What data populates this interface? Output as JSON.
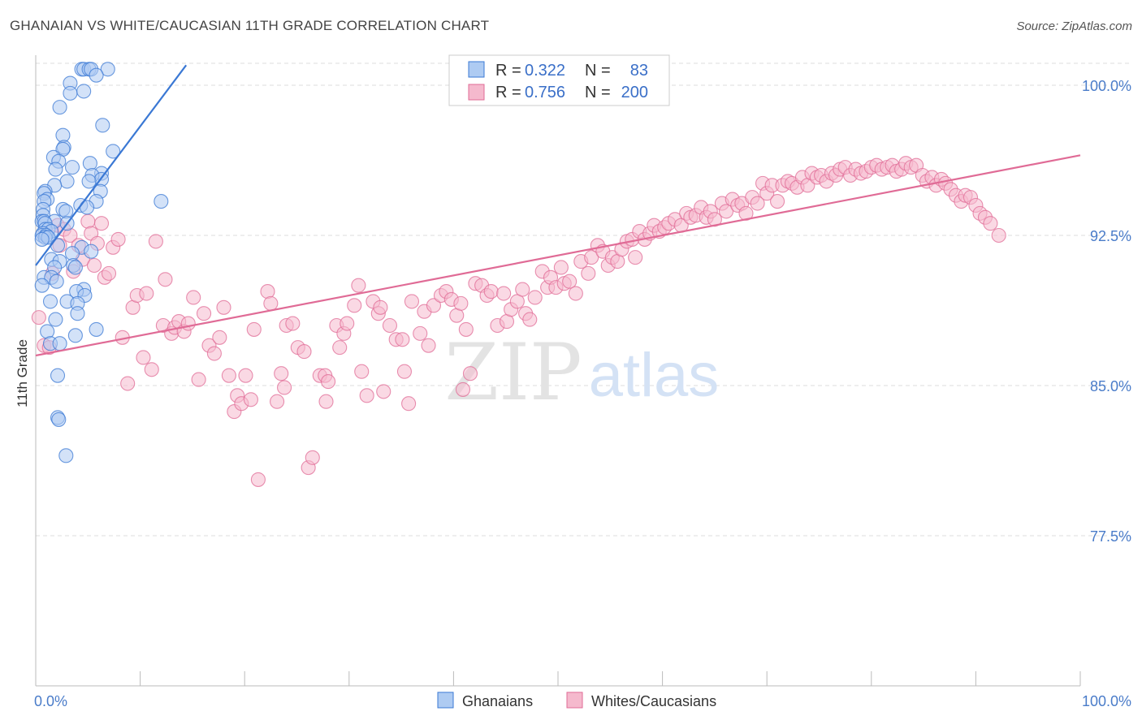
{
  "title": "GHANAIAN VS WHITE/CAUCASIAN 11TH GRADE CORRELATION CHART",
  "source": "Source: ZipAtlas.com",
  "watermark": {
    "zip": "ZIP",
    "atlas": "atlas"
  },
  "colors": {
    "blue": "#3a78d4",
    "blue_fill": "#aecbf2",
    "pink": "#e06b96",
    "pink_fill": "#f5b9cd",
    "axis_label": "#4a7cc9",
    "grid": "#dddddd"
  },
  "legend_top": {
    "rows": [
      {
        "r_label": "R =",
        "r_value": "0.322",
        "n_label": "N =",
        "n_value": "83"
      },
      {
        "r_label": "R =",
        "r_value": "0.756",
        "n_label": "N =",
        "n_value": "200"
      }
    ]
  },
  "legend_bottom": [
    "Ghanaians",
    "Whites/Caucasians"
  ],
  "chart_data": {
    "type": "scatter",
    "title": "GHANAIAN VS WHITE/CAUCASIAN 11TH GRADE CORRELATION CHART",
    "xlabel": "",
    "ylabel": "11th Grade",
    "xlim": [
      0,
      100
    ],
    "ylim": [
      70,
      101.5
    ],
    "x_tick_labels": [
      "0.0%",
      "100.0%"
    ],
    "y_ticks": [
      77.5,
      85.0,
      92.5,
      100.0
    ],
    "y_tick_labels": [
      "77.5%",
      "85.0%",
      "92.5%",
      "100.0%"
    ],
    "series": [
      {
        "name": "Ghanaians",
        "R": 0.322,
        "N": 83,
        "trend": {
          "x": [
            0,
            14.4
          ],
          "y": [
            91.0,
            101.0
          ]
        },
        "points": [
          [
            4.4,
            100.8
          ],
          [
            4.6,
            100.8
          ],
          [
            5.1,
            100.8
          ],
          [
            5.3,
            100.8
          ],
          [
            6.9,
            100.8
          ],
          [
            5.8,
            100.5
          ],
          [
            3.3,
            100.1
          ],
          [
            3.3,
            99.6
          ],
          [
            4.6,
            99.7
          ],
          [
            2.3,
            98.9
          ],
          [
            6.4,
            98.0
          ],
          [
            2.6,
            97.5
          ],
          [
            2.7,
            96.9
          ],
          [
            2.6,
            96.8
          ],
          [
            7.4,
            96.7
          ],
          [
            1.7,
            96.4
          ],
          [
            2.2,
            96.2
          ],
          [
            5.2,
            96.1
          ],
          [
            3.5,
            95.9
          ],
          [
            1.9,
            95.8
          ],
          [
            6.3,
            95.6
          ],
          [
            5.4,
            95.5
          ],
          [
            6.3,
            95.3
          ],
          [
            3.0,
            95.2
          ],
          [
            5.1,
            95.2
          ],
          [
            1.8,
            95.0
          ],
          [
            0.9,
            94.7
          ],
          [
            6.2,
            94.7
          ],
          [
            0.8,
            94.6
          ],
          [
            1.1,
            94.3
          ],
          [
            0.8,
            94.2
          ],
          [
            5.8,
            94.2
          ],
          [
            12.0,
            94.2
          ],
          [
            4.3,
            94.0
          ],
          [
            4.9,
            93.9
          ],
          [
            0.7,
            93.8
          ],
          [
            2.6,
            93.8
          ],
          [
            2.9,
            93.7
          ],
          [
            0.7,
            93.5
          ],
          [
            0.6,
            93.2
          ],
          [
            0.8,
            93.2
          ],
          [
            1.8,
            93.2
          ],
          [
            0.9,
            93.1
          ],
          [
            3.0,
            93.1
          ],
          [
            0.9,
            92.8
          ],
          [
            1.2,
            92.8
          ],
          [
            1.5,
            92.7
          ],
          [
            0.7,
            92.6
          ],
          [
            0.6,
            92.5
          ],
          [
            1.0,
            92.5
          ],
          [
            0.9,
            92.4
          ],
          [
            1.2,
            92.4
          ],
          [
            0.6,
            92.3
          ],
          [
            2.1,
            92.0
          ],
          [
            4.4,
            91.9
          ],
          [
            5.3,
            91.7
          ],
          [
            3.5,
            91.6
          ],
          [
            1.5,
            91.3
          ],
          [
            2.3,
            91.2
          ],
          [
            3.6,
            91.0
          ],
          [
            1.8,
            90.9
          ],
          [
            3.8,
            90.9
          ],
          [
            0.8,
            90.4
          ],
          [
            1.5,
            90.4
          ],
          [
            2.0,
            90.2
          ],
          [
            0.6,
            90.0
          ],
          [
            4.6,
            89.8
          ],
          [
            3.9,
            89.7
          ],
          [
            4.7,
            89.5
          ],
          [
            1.4,
            89.2
          ],
          [
            3.0,
            89.2
          ],
          [
            4.0,
            89.1
          ],
          [
            4.0,
            88.6
          ],
          [
            1.9,
            88.3
          ],
          [
            1.1,
            87.7
          ],
          [
            5.8,
            87.8
          ],
          [
            3.8,
            87.5
          ],
          [
            1.4,
            87.1
          ],
          [
            2.3,
            87.1
          ],
          [
            2.1,
            85.5
          ],
          [
            2.1,
            83.4
          ],
          [
            2.2,
            83.3
          ],
          [
            2.9,
            81.5
          ]
        ]
      },
      {
        "name": "Whites/Caucasians",
        "R": 0.756,
        "N": 200,
        "trend": {
          "x": [
            0,
            100
          ],
          "y": [
            86.5,
            96.5
          ]
        },
        "points": [
          [
            0.3,
            88.4
          ],
          [
            0.8,
            87.0
          ],
          [
            1.3,
            86.9
          ],
          [
            1.6,
            90.6
          ],
          [
            2.1,
            93.0
          ],
          [
            2.3,
            92.0
          ],
          [
            2.7,
            92.8
          ],
          [
            3.3,
            92.5
          ],
          [
            3.6,
            90.7
          ],
          [
            4.1,
            92.0
          ],
          [
            4.5,
            91.3
          ],
          [
            5.0,
            93.2
          ],
          [
            5.3,
            92.6
          ],
          [
            5.6,
            91.0
          ],
          [
            5.9,
            92.1
          ],
          [
            6.3,
            93.1
          ],
          [
            6.6,
            90.4
          ],
          [
            7.0,
            90.6
          ],
          [
            7.4,
            91.9
          ],
          [
            7.9,
            92.3
          ],
          [
            8.3,
            87.4
          ],
          [
            8.8,
            85.1
          ],
          [
            9.3,
            88.9
          ],
          [
            9.7,
            89.5
          ],
          [
            10.3,
            86.4
          ],
          [
            10.6,
            89.6
          ],
          [
            11.1,
            85.8
          ],
          [
            11.5,
            92.2
          ],
          [
            12.2,
            88.0
          ],
          [
            12.4,
            90.3
          ],
          [
            13.0,
            87.6
          ],
          [
            13.3,
            87.9
          ],
          [
            13.7,
            88.2
          ],
          [
            14.2,
            87.7
          ],
          [
            14.6,
            88.1
          ],
          [
            15.1,
            89.4
          ],
          [
            15.6,
            85.3
          ],
          [
            16.1,
            88.6
          ],
          [
            16.6,
            87.0
          ],
          [
            17.1,
            86.6
          ],
          [
            17.6,
            87.4
          ],
          [
            18.0,
            88.9
          ],
          [
            18.5,
            85.5
          ],
          [
            19.0,
            83.7
          ],
          [
            19.3,
            84.5
          ],
          [
            19.7,
            84.1
          ],
          [
            20.1,
            85.5
          ],
          [
            20.6,
            84.3
          ],
          [
            20.9,
            87.8
          ],
          [
            21.3,
            80.3
          ],
          [
            22.2,
            89.7
          ],
          [
            22.5,
            89.1
          ],
          [
            23.1,
            84.2
          ],
          [
            23.5,
            85.6
          ],
          [
            23.8,
            84.9
          ],
          [
            24.0,
            88.0
          ],
          [
            24.6,
            88.1
          ],
          [
            25.1,
            86.9
          ],
          [
            25.7,
            86.7
          ],
          [
            26.1,
            80.9
          ],
          [
            26.5,
            81.4
          ],
          [
            27.2,
            85.5
          ],
          [
            27.7,
            85.5
          ],
          [
            28.0,
            85.2
          ],
          [
            28.8,
            88.0
          ],
          [
            29.1,
            86.9
          ],
          [
            29.5,
            87.6
          ],
          [
            29.8,
            88.1
          ],
          [
            30.5,
            89.0
          ],
          [
            30.9,
            90.0
          ],
          [
            31.2,
            85.7
          ],
          [
            31.7,
            84.5
          ],
          [
            32.3,
            89.2
          ],
          [
            32.8,
            88.6
          ],
          [
            33.0,
            88.9
          ],
          [
            33.3,
            84.7
          ],
          [
            33.9,
            88.0
          ],
          [
            34.5,
            87.3
          ],
          [
            35.1,
            87.3
          ],
          [
            35.3,
            85.7
          ],
          [
            35.7,
            84.1
          ],
          [
            36.0,
            89.2
          ],
          [
            36.8,
            87.6
          ],
          [
            37.2,
            88.7
          ],
          [
            37.6,
            87.0
          ],
          [
            38.1,
            89.0
          ],
          [
            38.8,
            89.5
          ],
          [
            39.3,
            89.7
          ],
          [
            39.8,
            89.3
          ],
          [
            40.3,
            88.5
          ],
          [
            40.7,
            89.1
          ],
          [
            41.2,
            87.8
          ],
          [
            41.6,
            85.6
          ],
          [
            42.1,
            90.1
          ],
          [
            42.7,
            90.0
          ],
          [
            43.2,
            89.5
          ],
          [
            43.6,
            89.7
          ],
          [
            44.2,
            88.0
          ],
          [
            44.8,
            89.6
          ],
          [
            45.1,
            88.2
          ],
          [
            45.5,
            88.8
          ],
          [
            46.1,
            89.2
          ],
          [
            46.6,
            89.8
          ],
          [
            46.9,
            88.6
          ],
          [
            47.3,
            88.3
          ],
          [
            47.8,
            89.4
          ],
          [
            48.5,
            90.7
          ],
          [
            49.0,
            89.9
          ],
          [
            49.3,
            90.4
          ],
          [
            49.8,
            89.9
          ],
          [
            50.3,
            90.9
          ],
          [
            50.6,
            90.1
          ],
          [
            51.1,
            90.2
          ],
          [
            51.7,
            89.6
          ],
          [
            52.2,
            91.2
          ],
          [
            52.9,
            90.6
          ],
          [
            53.2,
            91.4
          ],
          [
            53.8,
            92.0
          ],
          [
            54.3,
            91.7
          ],
          [
            54.8,
            91.0
          ],
          [
            55.2,
            91.4
          ],
          [
            55.7,
            91.2
          ],
          [
            56.1,
            91.8
          ],
          [
            56.6,
            92.2
          ],
          [
            57.1,
            92.3
          ],
          [
            57.4,
            91.4
          ],
          [
            57.8,
            92.7
          ],
          [
            58.3,
            92.3
          ],
          [
            58.8,
            92.6
          ],
          [
            59.2,
            93.0
          ],
          [
            59.7,
            92.7
          ],
          [
            60.2,
            92.9
          ],
          [
            60.6,
            93.1
          ],
          [
            61.2,
            93.3
          ],
          [
            61.8,
            93.0
          ],
          [
            62.3,
            93.6
          ],
          [
            62.7,
            93.4
          ],
          [
            63.2,
            93.5
          ],
          [
            63.7,
            93.9
          ],
          [
            64.2,
            93.4
          ],
          [
            64.6,
            93.7
          ],
          [
            65.0,
            93.3
          ],
          [
            65.7,
            94.1
          ],
          [
            66.1,
            93.7
          ],
          [
            66.7,
            94.3
          ],
          [
            67.2,
            94.0
          ],
          [
            67.6,
            94.1
          ],
          [
            68.0,
            93.6
          ],
          [
            68.6,
            94.4
          ],
          [
            69.1,
            94.1
          ],
          [
            69.6,
            95.1
          ],
          [
            70.0,
            94.6
          ],
          [
            70.5,
            95.0
          ],
          [
            71.0,
            94.2
          ],
          [
            71.5,
            95.0
          ],
          [
            72.0,
            95.2
          ],
          [
            72.4,
            95.1
          ],
          [
            72.9,
            94.9
          ],
          [
            73.4,
            95.4
          ],
          [
            73.9,
            95.0
          ],
          [
            74.3,
            95.6
          ],
          [
            74.8,
            95.4
          ],
          [
            75.2,
            95.5
          ],
          [
            75.7,
            95.2
          ],
          [
            76.2,
            95.6
          ],
          [
            76.6,
            95.5
          ],
          [
            77.0,
            95.8
          ],
          [
            77.5,
            95.9
          ],
          [
            78.0,
            95.5
          ],
          [
            78.5,
            95.8
          ],
          [
            79.0,
            95.6
          ],
          [
            79.5,
            95.7
          ],
          [
            80.0,
            95.9
          ],
          [
            80.5,
            96.0
          ],
          [
            81.0,
            95.8
          ],
          [
            81.5,
            95.9
          ],
          [
            82.0,
            96.0
          ],
          [
            82.4,
            95.7
          ],
          [
            82.9,
            95.8
          ],
          [
            83.3,
            96.1
          ],
          [
            83.8,
            95.9
          ],
          [
            84.3,
            96.0
          ],
          [
            84.9,
            95.5
          ],
          [
            85.3,
            95.2
          ],
          [
            85.8,
            95.4
          ],
          [
            86.2,
            95.0
          ],
          [
            86.7,
            95.3
          ],
          [
            87.1,
            95.1
          ],
          [
            87.6,
            94.8
          ],
          [
            88.1,
            94.5
          ],
          [
            88.6,
            94.2
          ],
          [
            89.0,
            94.5
          ],
          [
            89.5,
            94.4
          ],
          [
            90.0,
            94.0
          ],
          [
            90.4,
            93.6
          ],
          [
            90.9,
            93.4
          ],
          [
            91.4,
            93.1
          ],
          [
            92.2,
            92.5
          ],
          [
            27.8,
            84.2
          ],
          [
            40.9,
            84.8
          ]
        ]
      }
    ]
  }
}
